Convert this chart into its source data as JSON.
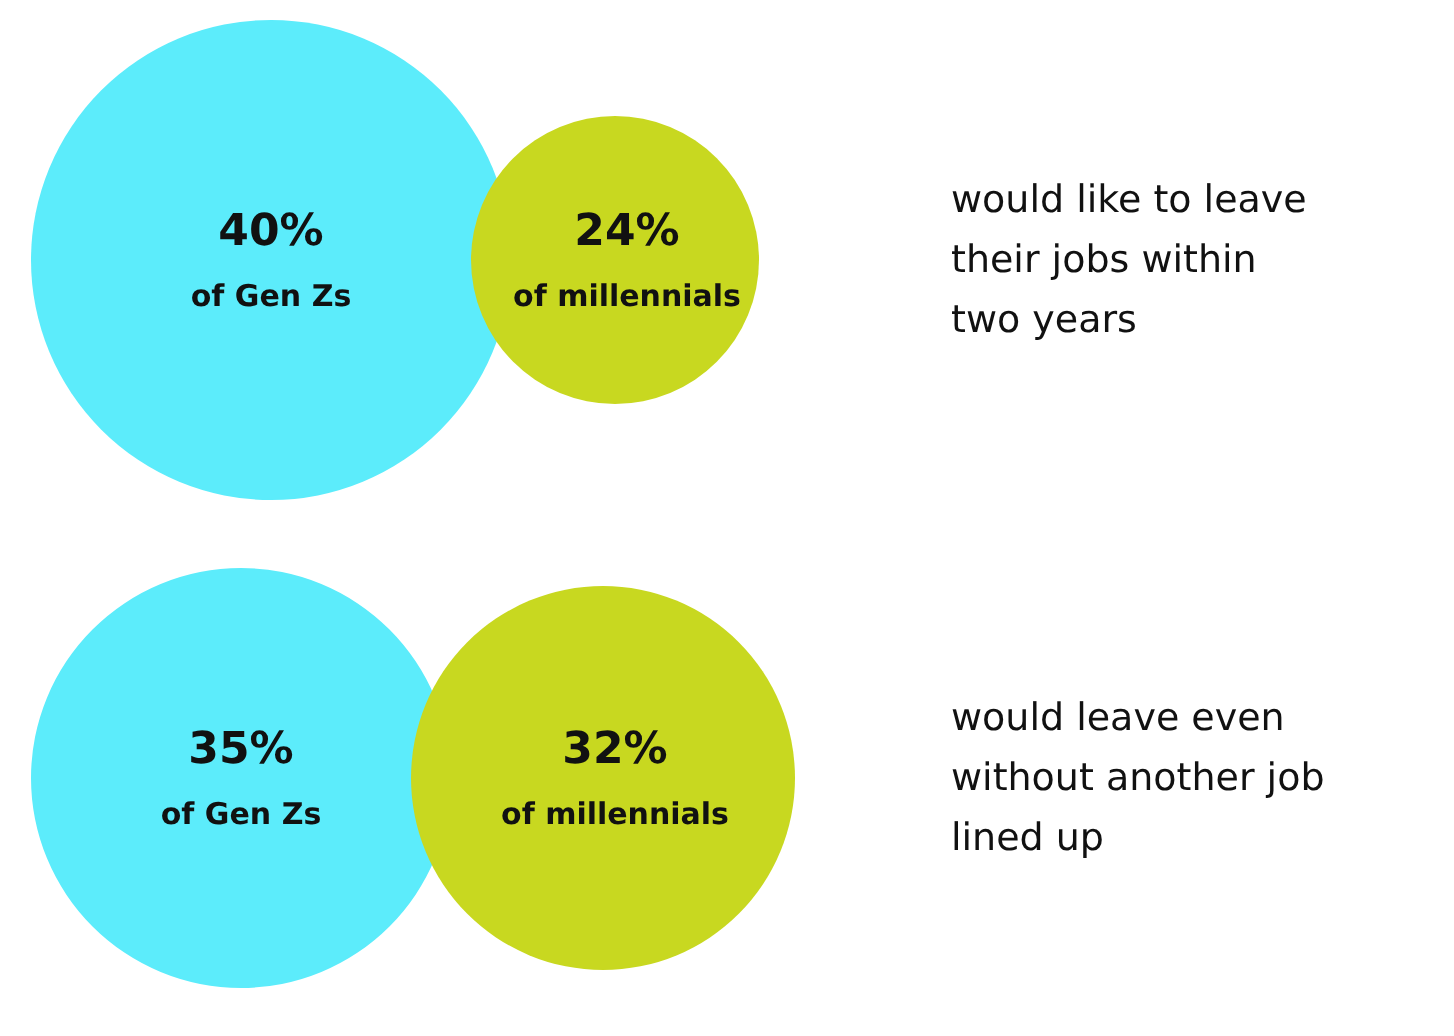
{
  "chart_data": {
    "type": "other",
    "categories": [
      "of Gen Zs",
      "of millennials"
    ],
    "series": [
      {
        "values": [
          40,
          24
        ],
        "value_labels": [
          "40%",
          "24%"
        ],
        "colors": [
          "#5cecfb",
          "#c8d820"
        ]
      },
      {
        "values": [
          35,
          32
        ],
        "value_labels": [
          "35%",
          "32%"
        ],
        "colors": [
          "#5cecfb",
          "#c8d820"
        ]
      }
    ],
    "annotations": [
      "would like to leave their jobs within two years",
      "would leave even without another job lined up"
    ]
  }
}
